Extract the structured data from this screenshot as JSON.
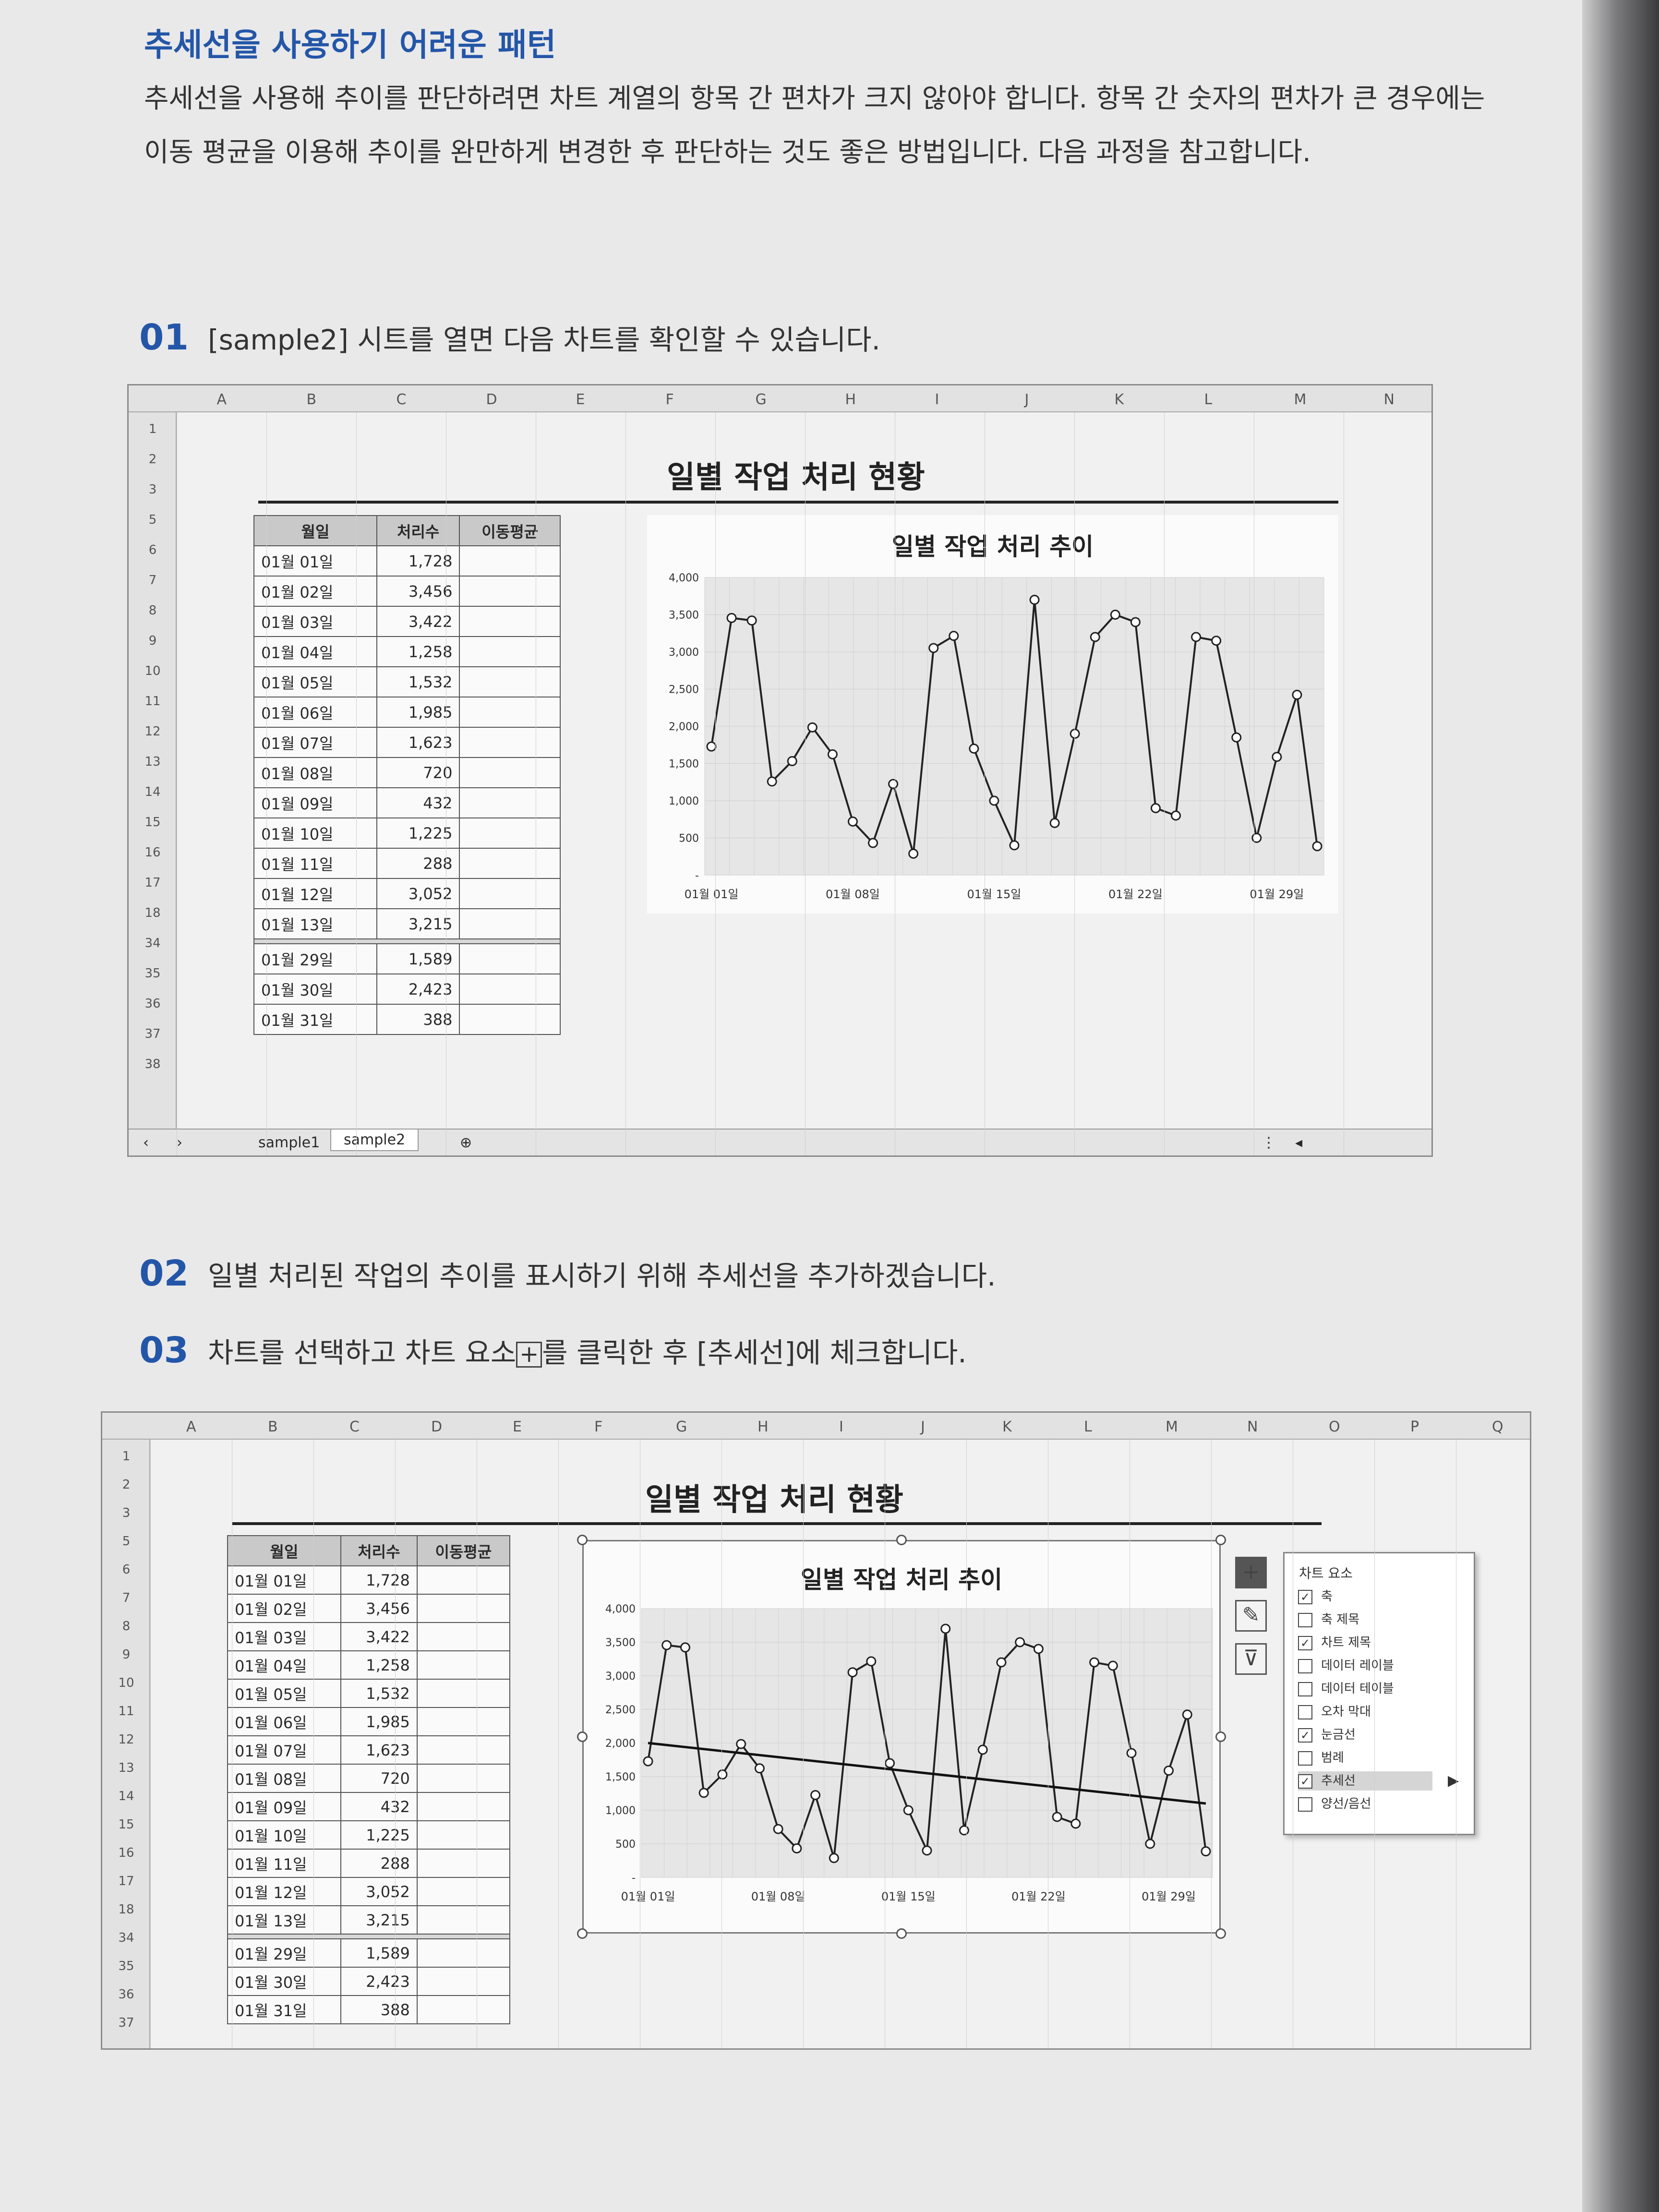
{
  "section_heading": "추세선을 사용하기 어려운 패턴",
  "intro_paragraph": "추세선을 사용해 추이를 판단하려면 차트 계열의 항목 간 편차가 크지 않아야 합니다. 항목 간 숫자의 편차가 큰 경우에는 이동 평균을 이용해 추이를 완만하게 변경한 후 판단하는 것도 좋은 방법입니다. 다음 과정을 참고합니다.",
  "steps": [
    {
      "num": "01",
      "text": "[sample2] 시트를 열면 다음 차트를 확인할 수 있습니다."
    },
    {
      "num": "02",
      "text": "일별 처리된 작업의 추이를 표시하기 위해 추세선을 추가하겠습니다."
    },
    {
      "num": "03",
      "text_before": "차트를 선택하고 차트 요소",
      "icon_glyph": "+",
      "text_after": "를 클릭한 후 [추세선]에 체크합니다."
    }
  ],
  "sheet": {
    "columns1": [
      "A",
      "B",
      "C",
      "D",
      "E",
      "F",
      "G",
      "H",
      "I",
      "J",
      "K",
      "L",
      "M",
      "N"
    ],
    "columns2": [
      "A",
      "B",
      "C",
      "D",
      "E",
      "F",
      "G",
      "H",
      "I",
      "J",
      "K",
      "L",
      "M",
      "N",
      "O",
      "P",
      "Q"
    ],
    "rows1": [
      "1",
      "2",
      "3",
      "5",
      "6",
      "7",
      "8",
      "9",
      "10",
      "11",
      "12",
      "13",
      "14",
      "15",
      "16",
      "17",
      "18",
      "34",
      "35",
      "36",
      "37",
      "38"
    ],
    "rows2": [
      "1",
      "2",
      "3",
      "5",
      "6",
      "7",
      "8",
      "9",
      "10",
      "11",
      "12",
      "13",
      "14",
      "15",
      "16",
      "17",
      "18",
      "34",
      "35",
      "36",
      "37"
    ],
    "report_title": "일별 작업 처리 현황",
    "table_headers": [
      "월일",
      "처리수",
      "이동평균"
    ],
    "rows_top": [
      [
        "01월 01일",
        "1,728"
      ],
      [
        "01월 02일",
        "3,456"
      ],
      [
        "01월 03일",
        "3,422"
      ],
      [
        "01월 04일",
        "1,258"
      ],
      [
        "01월 05일",
        "1,532"
      ],
      [
        "01월 06일",
        "1,985"
      ],
      [
        "01월 07일",
        "1,623"
      ],
      [
        "01월 08일",
        "720"
      ],
      [
        "01월 09일",
        "432"
      ],
      [
        "01월 10일",
        "1,225"
      ],
      [
        "01월 11일",
        "288"
      ],
      [
        "01월 12일",
        "3,052"
      ],
      [
        "01월 13일",
        "3,215"
      ]
    ],
    "rows_bottom": [
      [
        "01월 29일",
        "1,589"
      ],
      [
        "01월 30일",
        "2,423"
      ],
      [
        "01월 31일",
        "388"
      ]
    ],
    "tabs": [
      "sample1",
      "sample2"
    ],
    "nav_prev": "‹",
    "nav_next": "›",
    "add_sheet": "⊕",
    "more_menu": "⋮",
    "scroll_left": "◂"
  },
  "chart_data": [
    {
      "type": "line",
      "title": "일별 작업 처리 추이",
      "x": [
        "01월 01일",
        "01월 02일",
        "01월 03일",
        "01월 04일",
        "01월 05일",
        "01월 06일",
        "01월 07일",
        "01월 08일",
        "01월 09일",
        "01월 10일",
        "01월 11일",
        "01월 12일",
        "01월 13일",
        "01월 14일",
        "01월 15일",
        "01월 16일",
        "01월 17일",
        "01월 18일",
        "01월 19일",
        "01월 20일",
        "01월 21일",
        "01월 22일",
        "01월 23일",
        "01월 24일",
        "01월 25일",
        "01월 26일",
        "01월 27일",
        "01월 28일",
        "01월 29일",
        "01월 30일",
        "01월 31일"
      ],
      "xtick_labels": [
        "01월 01일",
        "01월 08일",
        "01월 15일",
        "01월 22일",
        "01월 29일"
      ],
      "yticks": [
        "4,000",
        "3,500",
        "3,000",
        "2,500",
        "2,000",
        "1,500",
        "1,000",
        "500",
        "-"
      ],
      "values": [
        1728,
        3456,
        3422,
        1258,
        1532,
        1985,
        1623,
        720,
        432,
        1225,
        288,
        3052,
        3215,
        1700,
        1000,
        400,
        3700,
        700,
        1900,
        3200,
        3500,
        3400,
        900,
        800,
        3200,
        3150,
        1850,
        500,
        1589,
        2423,
        388
      ],
      "ylim": [
        0,
        4000
      ],
      "grid": true,
      "trendline": false
    },
    {
      "type": "line",
      "title": "일별 작업 처리 추이",
      "x": [
        "01월 01일",
        "01월 02일",
        "01월 03일",
        "01월 04일",
        "01월 05일",
        "01월 06일",
        "01월 07일",
        "01월 08일",
        "01월 09일",
        "01월 10일",
        "01월 11일",
        "01월 12일",
        "01월 13일",
        "01월 14일",
        "01월 15일",
        "01월 16일",
        "01월 17일",
        "01월 18일",
        "01월 19일",
        "01월 20일",
        "01월 21일",
        "01월 22일",
        "01월 23일",
        "01월 24일",
        "01월 25일",
        "01월 26일",
        "01월 27일",
        "01월 28일",
        "01월 29일",
        "01월 30일",
        "01월 31일"
      ],
      "xtick_labels": [
        "01월 01일",
        "01월 08일",
        "01월 15일",
        "01월 22일",
        "01월 29일"
      ],
      "yticks": [
        "4,000",
        "3,500",
        "3,000",
        "2,500",
        "2,000",
        "1,500",
        "1,000",
        "500",
        "-"
      ],
      "values": [
        1728,
        3456,
        3422,
        1258,
        1532,
        1985,
        1623,
        720,
        432,
        1225,
        288,
        3052,
        3215,
        1700,
        1000,
        400,
        3700,
        700,
        1900,
        3200,
        3500,
        3400,
        900,
        800,
        3200,
        3150,
        1850,
        500,
        1589,
        2423,
        388
      ],
      "ylim": [
        0,
        4000
      ],
      "grid": true,
      "trendline": true,
      "trendline_range": [
        2000,
        1100
      ]
    }
  ],
  "chart_elements_panel": {
    "title": "차트 요소",
    "items": [
      {
        "label": "축",
        "checked": true
      },
      {
        "label": "축 제목",
        "checked": false
      },
      {
        "label": "차트 제목",
        "checked": true
      },
      {
        "label": "데이터 레이블",
        "checked": false
      },
      {
        "label": "데이터 테이블",
        "checked": false
      },
      {
        "label": "오차 막대",
        "checked": false
      },
      {
        "label": "눈금선",
        "checked": true
      },
      {
        "label": "범례",
        "checked": false
      },
      {
        "label": "추세선",
        "checked": true,
        "highlighted": true
      },
      {
        "label": "양선/음선",
        "checked": false
      }
    ],
    "check_glyph": "✓",
    "submenu_arrow": "▶",
    "side_icons": [
      "chart-elements-icon",
      "chart-styles-icon",
      "chart-filters-icon"
    ],
    "side_icon_glyphs": [
      "+",
      "✎",
      "⊽"
    ]
  }
}
